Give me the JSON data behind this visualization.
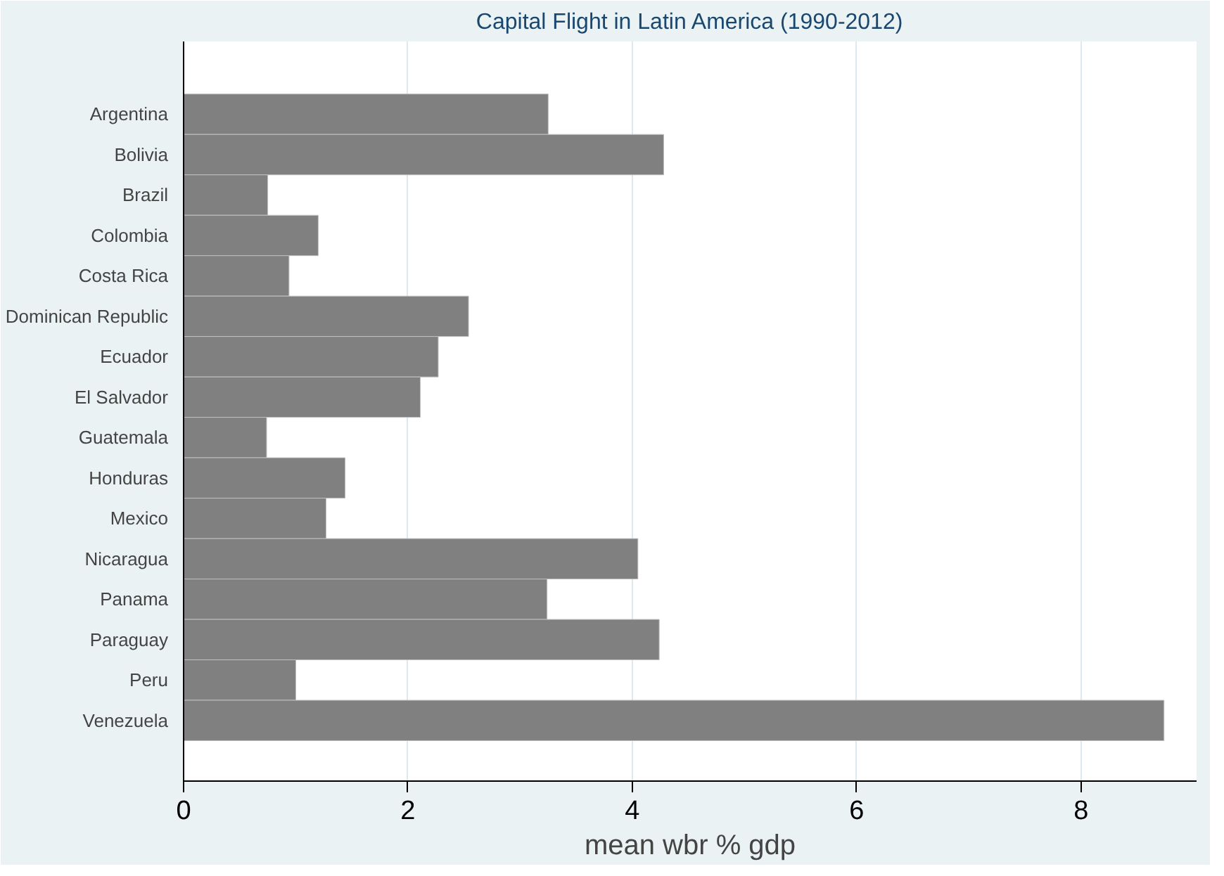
{
  "chart_data": {
    "type": "bar",
    "orientation": "horizontal",
    "title": "Capital Flight in Latin America (1990-2012)",
    "xlabel": "mean wbr % gdp",
    "categories": [
      "Argentina",
      "Bolivia",
      "Brazil",
      "Colombia",
      "Costa Rica",
      "Dominican Republic",
      "Ecuador",
      "El Salvador",
      "Guatemala",
      "Honduras",
      "Mexico",
      "Nicaragua",
      "Panama",
      "Paraguay",
      "Peru",
      "Venezuela"
    ],
    "values": [
      3.25,
      4.28,
      0.75,
      1.2,
      0.94,
      2.54,
      2.27,
      2.11,
      0.74,
      1.44,
      1.27,
      4.05,
      3.24,
      4.24,
      1.0,
      8.74
    ],
    "color": "#808080",
    "xlim": [
      0,
      9.03
    ],
    "xticks": [
      0,
      2,
      4,
      6,
      8
    ],
    "grid": "x"
  }
}
